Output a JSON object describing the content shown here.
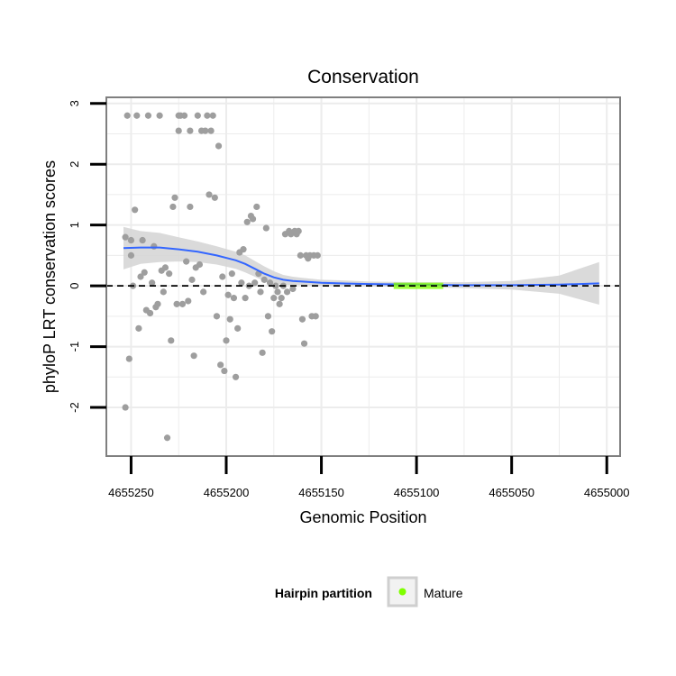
{
  "chart_data": {
    "type": "scatter",
    "title": "Conservation",
    "xlabel": "Genomic Position",
    "ylabel": "phyloP LRT conservation scores",
    "xlim": [
      4655263,
      4654993
    ],
    "ylim": [
      -2.8,
      3.1
    ],
    "x_reversed": true,
    "x_ticks": [
      4655250,
      4655200,
      4655150,
      4655100,
      4655050,
      4655000
    ],
    "x_tick_labels": [
      "4655250",
      "4655200",
      "4655150",
      "4655100",
      "4655050",
      "4655000"
    ],
    "y_ticks": [
      -2,
      -1,
      0,
      1,
      2,
      3
    ],
    "y_tick_labels": [
      "-2",
      "-1",
      "0",
      "1",
      "2",
      "3"
    ],
    "reference_line": 0,
    "colors": {
      "points": "#9e9e9e",
      "smooth": "#3366ff",
      "ribbon": "#d6d6d6",
      "mature": "#7fff00",
      "grid": "#ececec",
      "panel_border": "#7f7f7f"
    },
    "points": [
      [
        4655253,
        -2.0
      ],
      [
        4655253,
        0.8
      ],
      [
        4655252,
        2.8
      ],
      [
        4655251,
        -1.2
      ],
      [
        4655250,
        0.5
      ],
      [
        4655250,
        0.75
      ],
      [
        4655249,
        0.0
      ],
      [
        4655248,
        1.25
      ],
      [
        4655247,
        2.8
      ],
      [
        4655246,
        -0.7
      ],
      [
        4655245,
        0.15
      ],
      [
        4655244,
        0.75
      ],
      [
        4655243,
        0.22
      ],
      [
        4655242,
        -0.4
      ],
      [
        4655241,
        2.8
      ],
      [
        4655240,
        -0.45
      ],
      [
        4655239,
        0.05
      ],
      [
        4655238,
        0.65
      ],
      [
        4655237,
        -0.35
      ],
      [
        4655236,
        -0.3
      ],
      [
        4655235,
        2.8
      ],
      [
        4655234,
        0.25
      ],
      [
        4655233,
        -0.1
      ],
      [
        4655232,
        0.3
      ],
      [
        4655231,
        -2.5
      ],
      [
        4655230,
        0.2
      ],
      [
        4655229,
        -0.9
      ],
      [
        4655228,
        1.3
      ],
      [
        4655227,
        1.45
      ],
      [
        4655226,
        -0.3
      ],
      [
        4655225,
        2.55
      ],
      [
        4655225,
        2.8
      ],
      [
        4655224,
        2.8
      ],
      [
        4655223,
        -0.3
      ],
      [
        4655222,
        2.8
      ],
      [
        4655221,
        0.4
      ],
      [
        4655220,
        -0.25
      ],
      [
        4655219,
        2.55
      ],
      [
        4655219,
        1.3
      ],
      [
        4655218,
        0.1
      ],
      [
        4655217,
        -1.15
      ],
      [
        4655216,
        0.3
      ],
      [
        4655215,
        2.8
      ],
      [
        4655214,
        0.35
      ],
      [
        4655213,
        2.55
      ],
      [
        4655212,
        -0.1
      ],
      [
        4655211,
        2.55
      ],
      [
        4655210,
        2.8
      ],
      [
        4655209,
        1.5
      ],
      [
        4655208,
        2.55
      ],
      [
        4655207,
        2.8
      ],
      [
        4655206,
        1.45
      ],
      [
        4655205,
        -0.5
      ],
      [
        4655204,
        2.3
      ],
      [
        4655203,
        -1.3
      ],
      [
        4655202,
        0.15
      ],
      [
        4655201,
        -1.4
      ],
      [
        4655200,
        -0.9
      ],
      [
        4655199,
        -0.15
      ],
      [
        4655198,
        -0.55
      ],
      [
        4655197,
        0.2
      ],
      [
        4655196,
        -0.2
      ],
      [
        4655195,
        -1.5
      ],
      [
        4655194,
        -0.7
      ],
      [
        4655193,
        0.55
      ],
      [
        4655192,
        0.05
      ],
      [
        4655191,
        0.6
      ],
      [
        4655190,
        -0.2
      ],
      [
        4655189,
        1.05
      ],
      [
        4655188,
        0.0
      ],
      [
        4655187,
        1.15
      ],
      [
        4655186,
        1.1
      ],
      [
        4655185,
        0.05
      ],
      [
        4655184,
        1.3
      ],
      [
        4655183,
        0.2
      ],
      [
        4655182,
        -0.1
      ],
      [
        4655181,
        -1.1
      ],
      [
        4655180,
        0.1
      ],
      [
        4655179,
        0.95
      ],
      [
        4655178,
        -0.5
      ],
      [
        4655177,
        0.05
      ],
      [
        4655176,
        -0.75
      ],
      [
        4655175,
        -0.2
      ],
      [
        4655174,
        0.0
      ],
      [
        4655173,
        -0.1
      ],
      [
        4655172,
        -0.3
      ],
      [
        4655171,
        -0.2
      ],
      [
        4655170,
        0.0
      ],
      [
        4655169,
        0.85
      ],
      [
        4655168,
        -0.1
      ],
      [
        4655167,
        0.9
      ],
      [
        4655166,
        0.85
      ],
      [
        4655165,
        -0.05
      ],
      [
        4655164,
        0.9
      ],
      [
        4655163,
        0.85
      ],
      [
        4655162,
        0.9
      ],
      [
        4655161,
        0.5
      ],
      [
        4655160,
        -0.55
      ],
      [
        4655159,
        -0.95
      ],
      [
        4655158,
        0.5
      ],
      [
        4655157,
        0.45
      ],
      [
        4655156,
        0.5
      ],
      [
        4655155,
        -0.5
      ],
      [
        4655154,
        0.5
      ],
      [
        4655153,
        -0.5
      ],
      [
        4655152,
        0.5
      ]
    ],
    "smooth": [
      [
        4655254,
        0.62
      ],
      [
        4655245,
        0.63
      ],
      [
        4655235,
        0.63
      ],
      [
        4655225,
        0.6
      ],
      [
        4655215,
        0.56
      ],
      [
        4655205,
        0.5
      ],
      [
        4655195,
        0.42
      ],
      [
        4655190,
        0.36
      ],
      [
        4655185,
        0.28
      ],
      [
        4655180,
        0.2
      ],
      [
        4655175,
        0.14
      ],
      [
        4655170,
        0.1
      ],
      [
        4655165,
        0.08
      ],
      [
        4655160,
        0.07
      ],
      [
        4655150,
        0.05
      ],
      [
        4655140,
        0.04
      ],
      [
        4655125,
        0.03
      ],
      [
        4655100,
        0.02
      ],
      [
        4655075,
        0.01
      ],
      [
        4655050,
        0.01
      ],
      [
        4655025,
        0.02
      ],
      [
        4655004,
        0.04
      ]
    ],
    "ribbon_half_width": [
      [
        4655254,
        0.35
      ],
      [
        4655245,
        0.27
      ],
      [
        4655235,
        0.24
      ],
      [
        4655225,
        0.2
      ],
      [
        4655215,
        0.17
      ],
      [
        4655205,
        0.15
      ],
      [
        4655195,
        0.14
      ],
      [
        4655190,
        0.14
      ],
      [
        4655185,
        0.13
      ],
      [
        4655180,
        0.12
      ],
      [
        4655175,
        0.1
      ],
      [
        4655170,
        0.08
      ],
      [
        4655165,
        0.07
      ],
      [
        4655160,
        0.06
      ],
      [
        4655150,
        0.05
      ],
      [
        4655140,
        0.05
      ],
      [
        4655125,
        0.04
      ],
      [
        4655100,
        0.04
      ],
      [
        4655075,
        0.05
      ],
      [
        4655050,
        0.07
      ],
      [
        4655025,
        0.15
      ],
      [
        4655004,
        0.35
      ]
    ],
    "mature_region": [
      4655112,
      4655086
    ],
    "legend": {
      "title": "Hairpin partition",
      "items": [
        {
          "label": "Mature",
          "color": "#7fff00"
        }
      ],
      "position": "bottom"
    }
  }
}
